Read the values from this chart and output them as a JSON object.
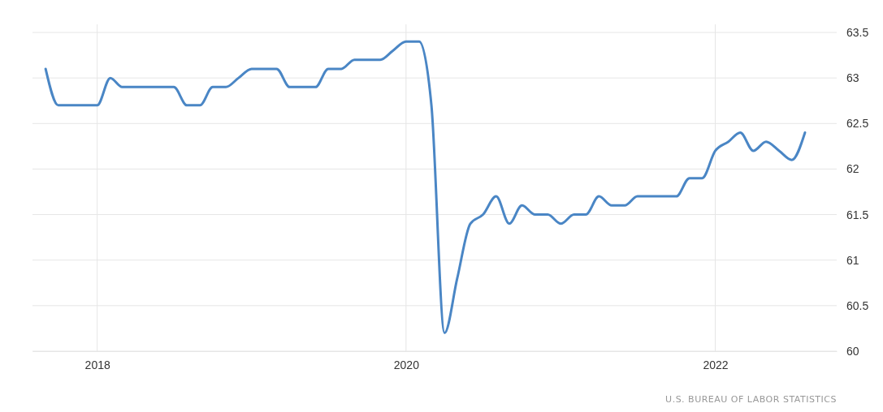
{
  "chart_data": {
    "type": "line",
    "x": [
      "2017-09",
      "2017-10",
      "2017-11",
      "2017-12",
      "2018-01",
      "2018-02",
      "2018-03",
      "2018-04",
      "2018-05",
      "2018-06",
      "2018-07",
      "2018-08",
      "2018-09",
      "2018-10",
      "2018-11",
      "2018-12",
      "2019-01",
      "2019-02",
      "2019-03",
      "2019-04",
      "2019-05",
      "2019-06",
      "2019-07",
      "2019-08",
      "2019-09",
      "2019-10",
      "2019-11",
      "2019-12",
      "2020-01",
      "2020-02",
      "2020-03",
      "2020-04",
      "2020-05",
      "2020-06",
      "2020-07",
      "2020-08",
      "2020-09",
      "2020-10",
      "2020-11",
      "2020-12",
      "2021-01",
      "2021-02",
      "2021-03",
      "2021-04",
      "2021-05",
      "2021-06",
      "2021-07",
      "2021-08",
      "2021-09",
      "2021-10",
      "2021-11",
      "2021-12",
      "2022-01",
      "2022-02",
      "2022-03",
      "2022-04",
      "2022-05",
      "2022-06",
      "2022-07",
      "2022-08"
    ],
    "series": [
      {
        "color": "#4a86c5",
        "values": [
          63.1,
          62.7,
          62.7,
          62.7,
          62.7,
          63.0,
          62.9,
          62.9,
          62.9,
          62.9,
          62.9,
          62.7,
          62.7,
          62.9,
          62.9,
          63.0,
          63.1,
          63.1,
          63.1,
          62.9,
          62.9,
          62.9,
          63.1,
          63.1,
          63.2,
          63.2,
          63.2,
          63.3,
          63.4,
          63.4,
          62.7,
          60.2,
          60.8,
          61.4,
          61.5,
          61.7,
          61.4,
          61.6,
          61.5,
          61.5,
          61.4,
          61.5,
          61.5,
          61.7,
          61.6,
          61.6,
          61.7,
          61.7,
          61.7,
          61.7,
          61.9,
          61.9,
          62.2,
          62.3,
          62.4,
          62.2,
          62.3,
          62.2,
          62.1,
          62.4
        ]
      }
    ],
    "xlim": [
      "2017-08-01",
      "2022-10-15"
    ],
    "xticks": [
      {
        "value": "2018-01-01",
        "label": "2018"
      },
      {
        "value": "2020-01-01",
        "label": "2020"
      },
      {
        "value": "2022-01-01",
        "label": "2022"
      }
    ],
    "ylim": [
      60,
      63.5
    ],
    "yticks": [
      60,
      60.5,
      61,
      61.5,
      62,
      62.5,
      63,
      63.5
    ],
    "grid": true,
    "annotations": [
      "U.S. BUREAU OF LABOR STATISTICS"
    ]
  }
}
